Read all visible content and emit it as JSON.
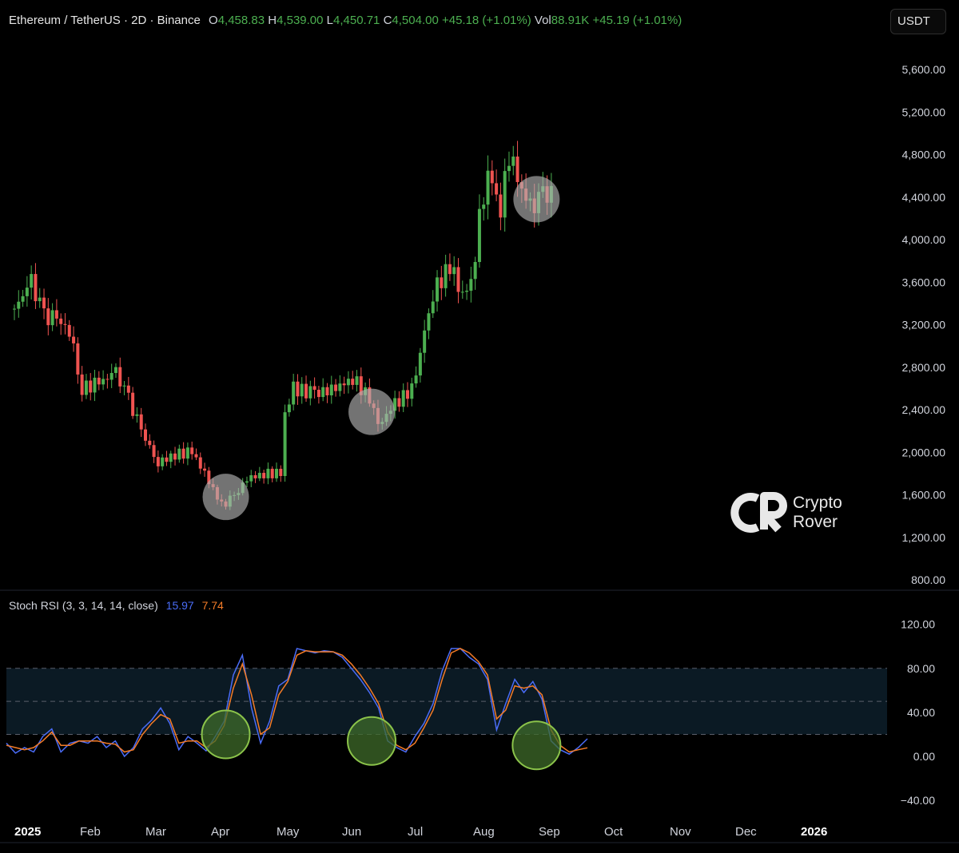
{
  "header": {
    "symbol": "Ethereum / TetherUS · 2D · Binance",
    "o_label": "O",
    "o_value": "4,458.83",
    "h_label": "H",
    "h_value": "4,539.00",
    "l_label": "L",
    "l_value": "4,450.71",
    "c_label": "C",
    "c_value": "4,504.00",
    "change": "+45.18 (+1.01%)",
    "vol_label": "Vol",
    "vol_value": "88.91K",
    "vol_change": "+45.19 (+1.01%)"
  },
  "currency_button": "USDT",
  "watermark": {
    "line1": "Crypto",
    "line2": "Rover"
  },
  "stoch_legend": {
    "label": "Stoch RSI (3, 3, 14, 14, close)",
    "k_value": "15.97",
    "d_value": "7.74"
  },
  "colors": {
    "up": "#4caf50",
    "down": "#ef5350",
    "k_line": "#4a6cf7",
    "d_line": "#f57c27",
    "highlight_main": "#b0b0b0",
    "highlight_osc": "#8bc34a"
  },
  "chart_data": [
    {
      "type": "candlestick",
      "title": "Ethereum / TetherUS · 2D · Binance",
      "ylim": [
        800,
        5800
      ],
      "y_ticks": [
        "5,600.00",
        "5,200.00",
        "4,800.00",
        "4,400.00",
        "4,000.00",
        "3,600.00",
        "3,200.00",
        "2,800.00",
        "2,400.00",
        "2,000.00",
        "1,600.00",
        "1,200.00",
        "800.00"
      ],
      "x_ticks": [
        "2025",
        "Feb",
        "Mar",
        "Apr",
        "May",
        "Jun",
        "Jul",
        "Aug",
        "Sep",
        "Oct",
        "Nov",
        "Dec",
        "2026"
      ],
      "series": [
        {
          "date": "2025-01-01",
          "close": 3350
        },
        {
          "date": "2025-01-09",
          "close": 3600
        },
        {
          "date": "2025-01-15",
          "close": 3280
        },
        {
          "date": "2025-01-21",
          "close": 3250
        },
        {
          "date": "2025-01-27",
          "close": 3150
        },
        {
          "date": "2025-02-02",
          "close": 2600
        },
        {
          "date": "2025-02-10",
          "close": 2650
        },
        {
          "date": "2025-02-18",
          "close": 2750
        },
        {
          "date": "2025-02-24",
          "close": 2500
        },
        {
          "date": "2025-03-02",
          "close": 2200
        },
        {
          "date": "2025-03-10",
          "close": 1900
        },
        {
          "date": "2025-03-18",
          "close": 1980
        },
        {
          "date": "2025-03-26",
          "close": 2000
        },
        {
          "date": "2025-04-01",
          "close": 1800
        },
        {
          "date": "2025-04-09",
          "close": 1500
        },
        {
          "date": "2025-04-15",
          "close": 1580
        },
        {
          "date": "2025-04-21",
          "close": 1750
        },
        {
          "date": "2025-04-29",
          "close": 1800
        },
        {
          "date": "2025-05-07",
          "close": 1800
        },
        {
          "date": "2025-05-09",
          "close": 2350
        },
        {
          "date": "2025-05-13",
          "close": 2600
        },
        {
          "date": "2025-05-23",
          "close": 2550
        },
        {
          "date": "2025-06-02",
          "close": 2600
        },
        {
          "date": "2025-06-10",
          "close": 2700
        },
        {
          "date": "2025-06-18",
          "close": 2500
        },
        {
          "date": "2025-06-22",
          "close": 2250
        },
        {
          "date": "2025-06-30",
          "close": 2450
        },
        {
          "date": "2025-07-08",
          "close": 2600
        },
        {
          "date": "2025-07-12",
          "close": 2950
        },
        {
          "date": "2025-07-18",
          "close": 3500
        },
        {
          "date": "2025-07-26",
          "close": 3750
        },
        {
          "date": "2025-08-01",
          "close": 3500
        },
        {
          "date": "2025-08-05",
          "close": 3550
        },
        {
          "date": "2025-08-09",
          "close": 4200
        },
        {
          "date": "2025-08-13",
          "close": 4650
        },
        {
          "date": "2025-08-19",
          "close": 4300
        },
        {
          "date": "2025-08-23",
          "close": 4800
        },
        {
          "date": "2025-08-27",
          "close": 4550
        },
        {
          "date": "2025-09-02",
          "close": 4300
        },
        {
          "date": "2025-09-08",
          "close": 4400
        },
        {
          "date": "2025-09-12",
          "close": 4504
        }
      ],
      "highlights": [
        {
          "date": "2025-04-11",
          "price": 1580
        },
        {
          "date": "2025-06-19",
          "price": 2380
        },
        {
          "date": "2025-09-05",
          "price": 4380
        }
      ]
    },
    {
      "type": "line",
      "title": "Stoch RSI (3, 3, 14, 14, close)",
      "ylim": [
        -50,
        135
      ],
      "y_ticks": [
        "120.00",
        "80.00",
        "40.00",
        "0.00",
        "−40.00"
      ],
      "bands": {
        "upper": 80,
        "middle": 50,
        "lower": 20
      },
      "series": [
        {
          "name": "K",
          "values": [
            [
              0,
              12
            ],
            [
              6,
              3
            ],
            [
              12,
              8
            ],
            [
              18,
              4
            ],
            [
              24,
              18
            ],
            [
              30,
              25
            ],
            [
              36,
              4
            ],
            [
              42,
              12
            ],
            [
              48,
              14
            ],
            [
              54,
              12
            ],
            [
              60,
              18
            ],
            [
              66,
              8
            ],
            [
              72,
              14
            ],
            [
              78,
              0
            ],
            [
              84,
              8
            ],
            [
              90,
              25
            ],
            [
              96,
              33
            ],
            [
              102,
              44
            ],
            [
              108,
              30
            ],
            [
              114,
              6
            ],
            [
              120,
              18
            ],
            [
              126,
              12
            ],
            [
              132,
              5
            ],
            [
              138,
              18
            ],
            [
              144,
              32
            ],
            [
              150,
              74
            ],
            [
              156,
              92
            ],
            [
              162,
              44
            ],
            [
              168,
              12
            ],
            [
              174,
              32
            ],
            [
              180,
              64
            ],
            [
              186,
              70
            ],
            [
              192,
              98
            ],
            [
              198,
              96
            ],
            [
              204,
              94
            ],
            [
              210,
              96
            ],
            [
              216,
              95
            ],
            [
              222,
              90
            ],
            [
              228,
              80
            ],
            [
              234,
              70
            ],
            [
              240,
              58
            ],
            [
              246,
              44
            ],
            [
              252,
              14
            ],
            [
              258,
              8
            ],
            [
              264,
              4
            ],
            [
              270,
              18
            ],
            [
              276,
              30
            ],
            [
              282,
              48
            ],
            [
              288,
              78
            ],
            [
              294,
              98
            ],
            [
              300,
              98
            ],
            [
              306,
              90
            ],
            [
              312,
              84
            ],
            [
              318,
              70
            ],
            [
              324,
              24
            ],
            [
              330,
              48
            ],
            [
              336,
              70
            ],
            [
              342,
              58
            ],
            [
              348,
              68
            ],
            [
              354,
              52
            ],
            [
              360,
              14
            ],
            [
              366,
              6
            ],
            [
              372,
              2
            ],
            [
              378,
              8
            ],
            [
              384,
              15.97
            ]
          ]
        },
        {
          "name": "D",
          "values": [
            [
              0,
              10
            ],
            [
              6,
              8
            ],
            [
              12,
              6
            ],
            [
              18,
              8
            ],
            [
              24,
              14
            ],
            [
              30,
              22
            ],
            [
              36,
              10
            ],
            [
              42,
              10
            ],
            [
              48,
              14
            ],
            [
              54,
              14
            ],
            [
              60,
              14
            ],
            [
              66,
              12
            ],
            [
              72,
              11
            ],
            [
              78,
              4
            ],
            [
              84,
              6
            ],
            [
              90,
              20
            ],
            [
              96,
              30
            ],
            [
              102,
              38
            ],
            [
              108,
              34
            ],
            [
              114,
              12
            ],
            [
              120,
              14
            ],
            [
              126,
              14
            ],
            [
              132,
              8
            ],
            [
              138,
              14
            ],
            [
              144,
              28
            ],
            [
              150,
              62
            ],
            [
              156,
              84
            ],
            [
              162,
              56
            ],
            [
              168,
              20
            ],
            [
              174,
              26
            ],
            [
              180,
              56
            ],
            [
              186,
              68
            ],
            [
              192,
              92
            ],
            [
              198,
              96
            ],
            [
              204,
              95
            ],
            [
              210,
              95
            ],
            [
              216,
              95
            ],
            [
              222,
              92
            ],
            [
              228,
              84
            ],
            [
              234,
              74
            ],
            [
              240,
              62
            ],
            [
              246,
              48
            ],
            [
              252,
              22
            ],
            [
              258,
              10
            ],
            [
              264,
              6
            ],
            [
              270,
              12
            ],
            [
              276,
              26
            ],
            [
              282,
              42
            ],
            [
              288,
              70
            ],
            [
              294,
              94
            ],
            [
              300,
              98
            ],
            [
              306,
              94
            ],
            [
              312,
              86
            ],
            [
              318,
              74
            ],
            [
              324,
              34
            ],
            [
              330,
              42
            ],
            [
              336,
              64
            ],
            [
              342,
              62
            ],
            [
              348,
              64
            ],
            [
              354,
              56
            ],
            [
              360,
              24
            ],
            [
              366,
              10
            ],
            [
              372,
              4
            ],
            [
              378,
              6
            ],
            [
              384,
              7.74
            ]
          ]
        }
      ],
      "highlights": [
        {
          "date": "2025-04-11",
          "value": 20
        },
        {
          "date": "2025-06-19",
          "value": 14
        },
        {
          "date": "2025-09-05",
          "value": 10
        }
      ]
    }
  ]
}
